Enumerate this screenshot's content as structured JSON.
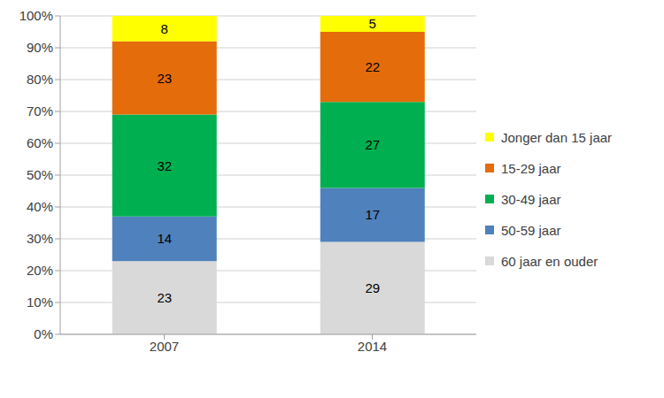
{
  "chart_data": {
    "type": "bar",
    "stacked": true,
    "data_labels": true,
    "grid": true,
    "legend": "right",
    "categories": [
      "2007",
      "2014"
    ],
    "series": [
      {
        "name": "Jonger dan 15 jaar",
        "color": "#ffff00",
        "values": [
          8,
          5
        ]
      },
      {
        "name": "15-29 jaar",
        "color": "#e46c0a",
        "values": [
          23,
          22
        ]
      },
      {
        "name": "30-49 jaar",
        "color": "#00b050",
        "values": [
          32,
          27
        ]
      },
      {
        "name": "50-59 jaar",
        "color": "#4f81bd",
        "values": [
          14,
          17
        ]
      },
      {
        "name": "60 jaar en ouder",
        "color": "#d9d9d9",
        "values": [
          23,
          29
        ]
      }
    ],
    "ylim": [
      0,
      100
    ],
    "yticks": [
      {
        "value": 0,
        "label": "0%"
      },
      {
        "value": 10,
        "label": "10%"
      },
      {
        "value": 20,
        "label": "20%"
      },
      {
        "value": 30,
        "label": "30%"
      },
      {
        "value": 40,
        "label": "40%"
      },
      {
        "value": 50,
        "label": "50%"
      },
      {
        "value": 60,
        "label": "60%"
      },
      {
        "value": 70,
        "label": "70%"
      },
      {
        "value": 80,
        "label": "80%"
      },
      {
        "value": 90,
        "label": "90%"
      },
      {
        "value": 100,
        "label": "100%"
      }
    ]
  }
}
